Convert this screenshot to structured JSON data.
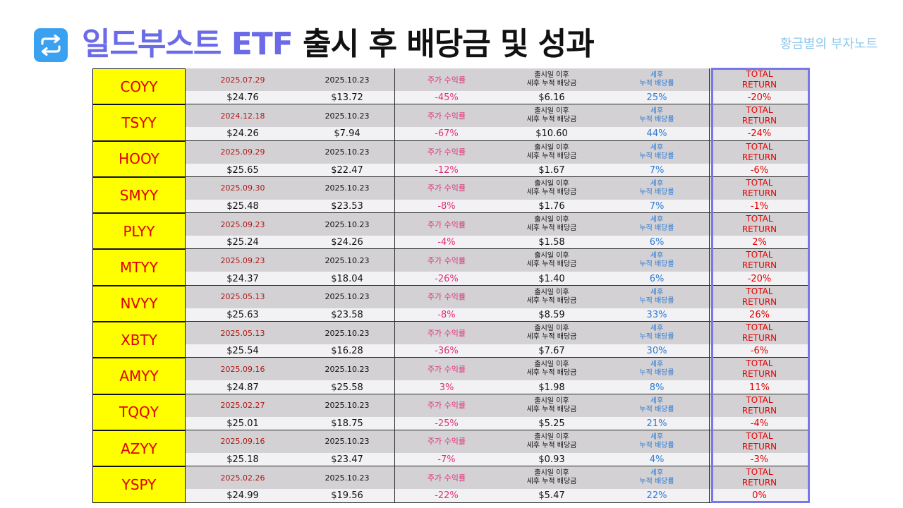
{
  "title": {
    "accent": "일드부스트 ETF",
    "rest": " 출시 후 배당금 및 성과"
  },
  "watermark": "황금별의 부자노트",
  "labels": {
    "price_return": "주가 수익률",
    "dividend_line1": "출시일 이후",
    "dividend_line2": "세후 누적 배당금",
    "yield_line1": "세후",
    "yield_line2": "누적 배당률",
    "total_line1": "TOTAL",
    "total_line2": "RETURN"
  },
  "rows": [
    {
      "ticker": "COYY",
      "launch_date": "2025.07.29",
      "current_date": "2025.10.23",
      "launch_price": "$24.76",
      "current_price": "$13.72",
      "price_return": "-45%",
      "dividends": "$6.16",
      "div_yield": "25%",
      "total_return": "-20%"
    },
    {
      "ticker": "TSYY",
      "launch_date": "2024.12.18",
      "current_date": "2025.10.23",
      "launch_price": "$24.26",
      "current_price": "$7.94",
      "price_return": "-67%",
      "dividends": "$10.60",
      "div_yield": "44%",
      "total_return": "-24%"
    },
    {
      "ticker": "HOOY",
      "launch_date": "2025.09.29",
      "current_date": "2025.10.23",
      "launch_price": "$25.65",
      "current_price": "$22.47",
      "price_return": "-12%",
      "dividends": "$1.67",
      "div_yield": "7%",
      "total_return": "-6%"
    },
    {
      "ticker": "SMYY",
      "launch_date": "2025.09.30",
      "current_date": "2025.10.23",
      "launch_price": "$25.48",
      "current_price": "$23.53",
      "price_return": "-8%",
      "dividends": "$1.76",
      "div_yield": "7%",
      "total_return": "-1%"
    },
    {
      "ticker": "PLYY",
      "launch_date": "2025.09.23",
      "current_date": "2025.10.23",
      "launch_price": "$25.24",
      "current_price": "$24.26",
      "price_return": "-4%",
      "dividends": "$1.58",
      "div_yield": "6%",
      "total_return": "2%"
    },
    {
      "ticker": "MTYY",
      "launch_date": "2025.09.23",
      "current_date": "2025.10.23",
      "launch_price": "$24.37",
      "current_price": "$18.04",
      "price_return": "-26%",
      "dividends": "$1.40",
      "div_yield": "6%",
      "total_return": "-20%"
    },
    {
      "ticker": "NVYY",
      "launch_date": "2025.05.13",
      "current_date": "2025.10.23",
      "launch_price": "$25.63",
      "current_price": "$23.58",
      "price_return": "-8%",
      "dividends": "$8.59",
      "div_yield": "33%",
      "total_return": "26%"
    },
    {
      "ticker": "XBTY",
      "launch_date": "2025.05.13",
      "current_date": "2025.10.23",
      "launch_price": "$25.54",
      "current_price": "$16.28",
      "price_return": "-36%",
      "dividends": "$7.67",
      "div_yield": "30%",
      "total_return": "-6%"
    },
    {
      "ticker": "AMYY",
      "launch_date": "2025.09.16",
      "current_date": "2025.10.23",
      "launch_price": "$24.87",
      "current_price": "$25.58",
      "price_return": "3%",
      "dividends": "$1.98",
      "div_yield": "8%",
      "total_return": "11%"
    },
    {
      "ticker": "TQQY",
      "launch_date": "2025.02.27",
      "current_date": "2025.10.23",
      "launch_price": "$25.01",
      "current_price": "$18.75",
      "price_return": "-25%",
      "dividends": "$5.25",
      "div_yield": "21%",
      "total_return": "-4%"
    },
    {
      "ticker": "AZYY",
      "launch_date": "2025.09.16",
      "current_date": "2025.10.23",
      "launch_price": "$25.18",
      "current_price": "$23.47",
      "price_return": "-7%",
      "dividends": "$0.93",
      "div_yield": "4%",
      "total_return": "-3%"
    },
    {
      "ticker": "YSPY",
      "launch_date": "2025.02.26",
      "current_date": "2025.10.23",
      "launch_price": "$24.99",
      "current_price": "$19.56",
      "price_return": "-22%",
      "dividends": "$5.47",
      "div_yield": "22%",
      "total_return": "0%"
    }
  ]
}
